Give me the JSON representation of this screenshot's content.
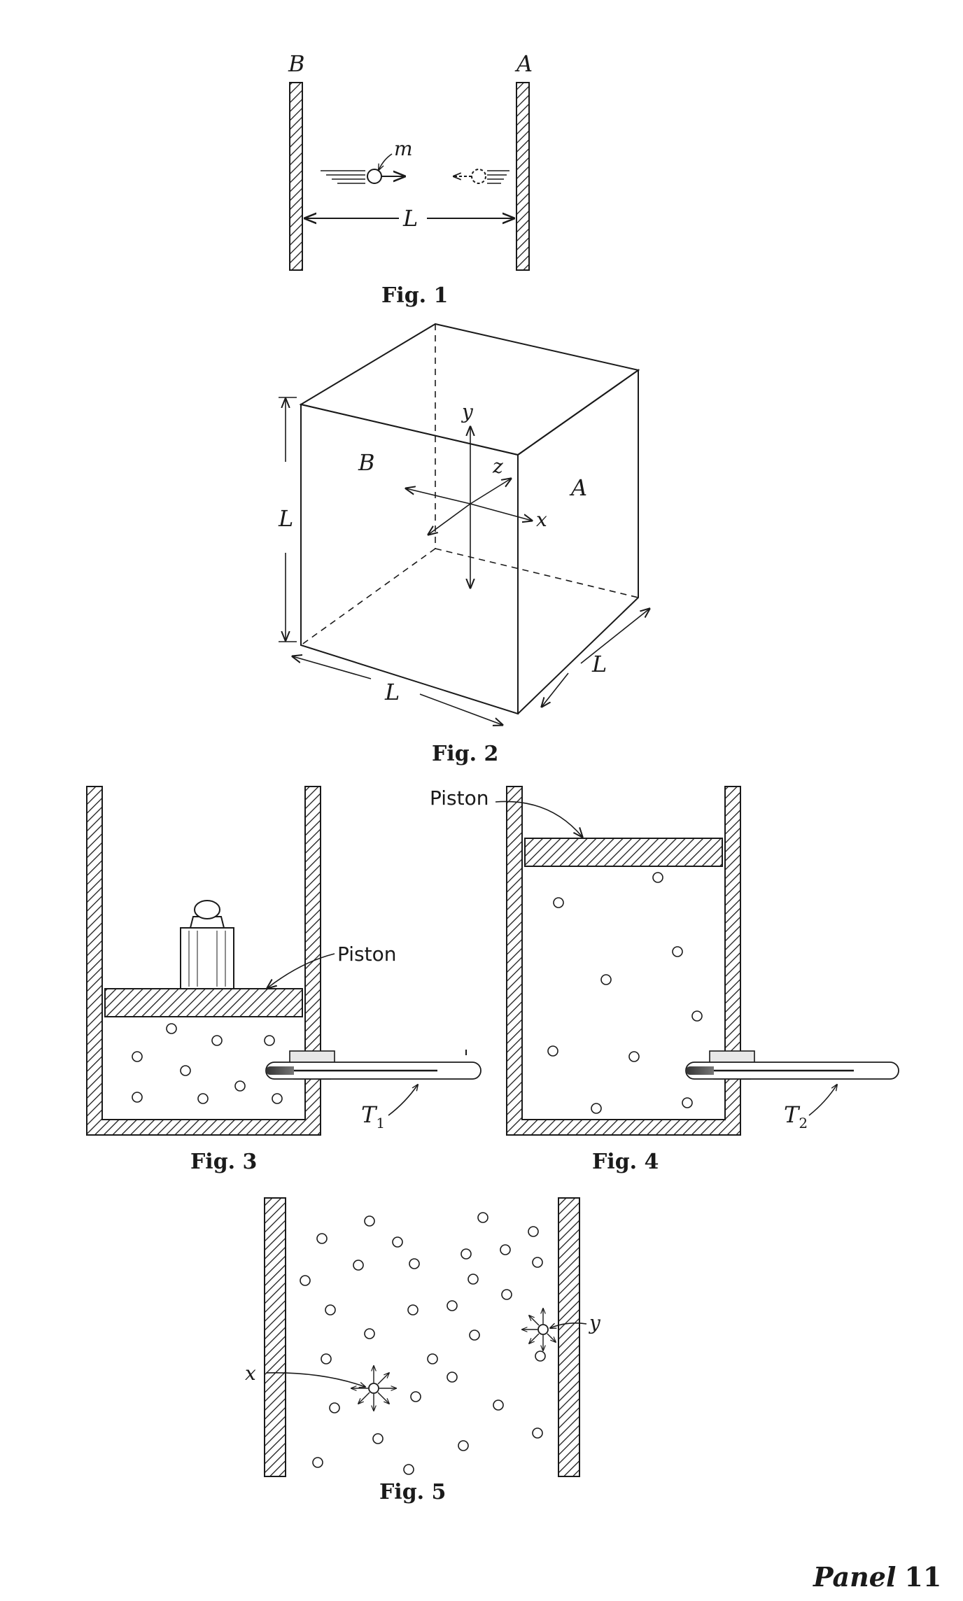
{
  "panel": {
    "word": "Panel",
    "number": "11"
  },
  "fig1": {
    "caption": "Fig. 1",
    "wall_left": "B",
    "wall_right": "A",
    "mass": "m",
    "distance": "L"
  },
  "fig2": {
    "caption": "Fig. 2",
    "face_left": "B",
    "face_right": "A",
    "axis_x": "x",
    "axis_y": "y",
    "axis_z": "z",
    "dim_height": "L",
    "dim_front": "L",
    "dim_side": "L"
  },
  "fig3": {
    "caption": "Fig. 3",
    "piston": "Piston",
    "thermometer": "T",
    "thermometer_sub": "1"
  },
  "fig4": {
    "caption": "Fig. 4",
    "piston": "Piston",
    "thermometer": "T",
    "thermometer_sub": "2"
  },
  "fig5": {
    "caption": "Fig. 5",
    "label_x": "x",
    "label_y": "y"
  },
  "colors": {
    "ink": "#1a1a1a",
    "paper": "#ffffff"
  }
}
